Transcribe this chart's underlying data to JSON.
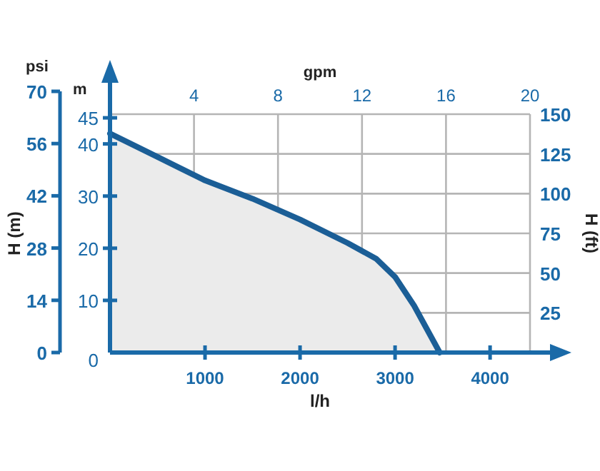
{
  "chart_data": {
    "type": "area",
    "xlabel": "l/h",
    "ylabel": "H (m)",
    "y2label": "H (ft)",
    "x2label": "gpm",
    "y3label": "psi",
    "annotations": [
      "m"
    ],
    "x": [
      0,
      500,
      1000,
      1500,
      2000,
      2500,
      2800,
      3000,
      3200,
      3470
    ],
    "series": [
      {
        "color": "#1b5e96",
        "values": [
          42,
          37.5,
          33,
          29.5,
          25.5,
          21,
          18,
          14.5,
          9,
          0
        ]
      }
    ],
    "xlim": [
      0,
      4420
    ],
    "xticks": [
      1000,
      2000,
      3000,
      4000
    ],
    "ylim": [
      0,
      45.7
    ],
    "yticks": [
      0,
      10,
      20,
      30,
      40,
      45
    ],
    "y2lim": [
      0,
      150
    ],
    "y2ticks": [
      25,
      50,
      75,
      100,
      125,
      150
    ],
    "x2lim": [
      0,
      20
    ],
    "x2ticks": [
      4,
      8,
      12,
      16,
      20
    ],
    "y3lim": [
      0,
      70
    ],
    "y3ticks": [
      0,
      14,
      28,
      42,
      56,
      70
    ],
    "grid": true
  }
}
